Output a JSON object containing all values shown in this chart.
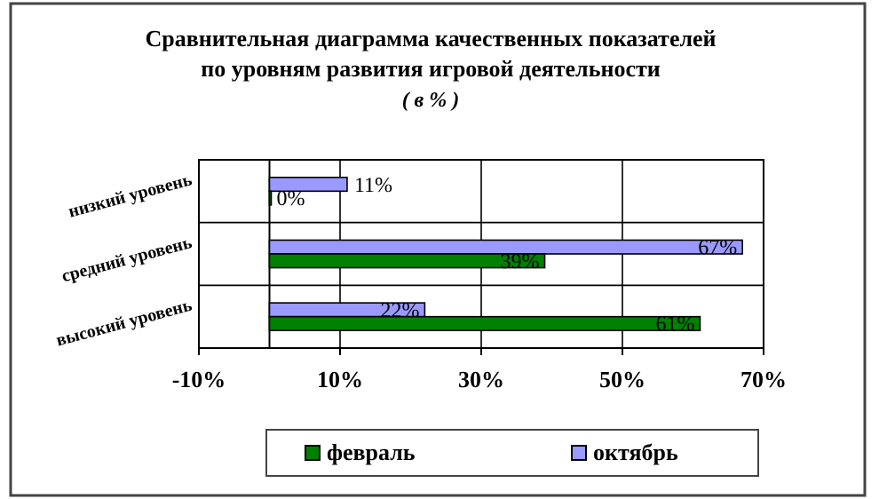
{
  "chart_data": {
    "type": "bar",
    "orientation": "horizontal",
    "title": "Сравнительная диаграмма качественных показателей\nпо уровням развития игровой деятельности",
    "subtitle": "( в % )",
    "categories": [
      "низкий уровень",
      "средний уровень",
      "высокий уровень"
    ],
    "series": [
      {
        "name": "октябрь",
        "color": "#9999ff",
        "values": [
          11,
          67,
          22
        ],
        "value_labels": [
          "11%",
          "67%",
          "22%"
        ]
      },
      {
        "name": "февраль",
        "color": "#008000",
        "values": [
          0,
          39,
          61
        ],
        "value_labels": [
          "0%",
          "39%",
          "61%"
        ]
      }
    ],
    "xlim": [
      -10,
      70
    ],
    "xticks": [
      {
        "value": -10,
        "label": "-10%"
      },
      {
        "value": 10,
        "label": "10%"
      },
      {
        "value": 30,
        "label": "30%"
      },
      {
        "value": 50,
        "label": "50%"
      },
      {
        "value": 70,
        "label": "70%"
      }
    ],
    "grid": true,
    "legend": "bottom"
  }
}
